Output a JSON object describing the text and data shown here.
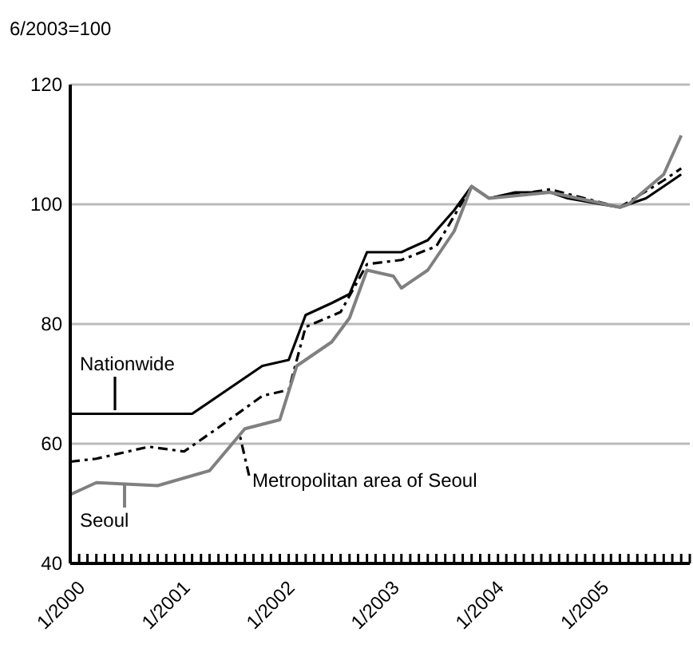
{
  "chart_data": {
    "type": "line",
    "title": "6/2003=100",
    "ylim": [
      40,
      120
    ],
    "yticks": [
      40,
      60,
      80,
      100,
      120
    ],
    "grid": "y",
    "legend": "bottom left",
    "xlim": [
      "2000-01",
      "2005-12"
    ],
    "xticks": [
      {
        "value": "2000-01",
        "label": "1/2000"
      },
      {
        "value": "2000-02",
        "label": null
      },
      {
        "value": "2000-03",
        "label": null
      },
      {
        "value": "2000-04",
        "label": null
      },
      {
        "value": "2000-05",
        "label": null
      },
      {
        "value": "2000-06",
        "label": null
      },
      {
        "value": "2000-07",
        "label": null
      },
      {
        "value": "2000-08",
        "label": null
      },
      {
        "value": "2000-09",
        "label": null
      },
      {
        "value": "2000-10",
        "label": null
      },
      {
        "value": "2000-11",
        "label": null
      },
      {
        "value": "2000-12",
        "label": null
      },
      {
        "value": "2001-01",
        "label": "1/2001"
      },
      {
        "value": "2001-02",
        "label": null
      },
      {
        "value": "2001-03",
        "label": null
      },
      {
        "value": "2001-04",
        "label": null
      },
      {
        "value": "2001-05",
        "label": null
      },
      {
        "value": "2001-06",
        "label": null
      },
      {
        "value": "2001-07",
        "label": null
      },
      {
        "value": "2001-08",
        "label": null
      },
      {
        "value": "2001-09",
        "label": null
      },
      {
        "value": "2001-10",
        "label": null
      },
      {
        "value": "2001-11",
        "label": null
      },
      {
        "value": "2001-12",
        "label": null
      },
      {
        "value": "2002-01",
        "label": "1/2002"
      },
      {
        "value": "2002-02",
        "label": null
      },
      {
        "value": "2002-03",
        "label": null
      },
      {
        "value": "2002-04",
        "label": null
      },
      {
        "value": "2002-05",
        "label": null
      },
      {
        "value": "2002-06",
        "label": null
      },
      {
        "value": "2002-07",
        "label": null
      },
      {
        "value": "2002-08",
        "label": null
      },
      {
        "value": "2002-09",
        "label": null
      },
      {
        "value": "2002-10",
        "label": null
      },
      {
        "value": "2002-11",
        "label": null
      },
      {
        "value": "2002-12",
        "label": null
      },
      {
        "value": "2003-01",
        "label": "1/2003"
      },
      {
        "value": "2003-02",
        "label": null
      },
      {
        "value": "2003-03",
        "label": null
      },
      {
        "value": "2003-04",
        "label": null
      },
      {
        "value": "2003-05",
        "label": null
      },
      {
        "value": "2003-06",
        "label": null
      },
      {
        "value": "2003-07",
        "label": null
      },
      {
        "value": "2003-08",
        "label": null
      },
      {
        "value": "2003-09",
        "label": null
      },
      {
        "value": "2003-10",
        "label": null
      },
      {
        "value": "2003-11",
        "label": null
      },
      {
        "value": "2003-12",
        "label": null
      },
      {
        "value": "2004-01",
        "label": "1/2004"
      },
      {
        "value": "2004-02",
        "label": null
      },
      {
        "value": "2004-03",
        "label": null
      },
      {
        "value": "2004-04",
        "label": null
      },
      {
        "value": "2004-05",
        "label": null
      },
      {
        "value": "2004-06",
        "label": null
      },
      {
        "value": "2004-07",
        "label": null
      },
      {
        "value": "2004-08",
        "label": null
      },
      {
        "value": "2004-09",
        "label": null
      },
      {
        "value": "2004-10",
        "label": null
      },
      {
        "value": "2004-11",
        "label": null
      },
      {
        "value": "2004-12",
        "label": null
      },
      {
        "value": "2005-01",
        "label": "1/2005"
      },
      {
        "value": "2005-02",
        "label": null
      },
      {
        "value": "2005-03",
        "label": null
      },
      {
        "value": "2005-04",
        "label": null
      },
      {
        "value": "2005-05",
        "label": null
      },
      {
        "value": "2005-06",
        "label": null
      },
      {
        "value": "2005-07",
        "label": null
      },
      {
        "value": "2005-08",
        "label": null
      },
      {
        "value": "2005-09",
        "label": null
      },
      {
        "value": "2005-10",
        "label": null
      },
      {
        "value": "2005-11",
        "label": null
      },
      {
        "value": "2005-12",
        "label": null
      }
    ],
    "series": [
      {
        "name": "Nationwide",
        "color": "#000000",
        "line_style": "solid",
        "x": [
          "2000-01",
          "2001-03",
          "2001-11",
          "2002-02",
          "2002-04",
          "2002-07",
          "2002-09",
          "2002-11",
          "2003-03",
          "2003-06",
          "2003-09",
          "2003-11",
          "2004-01",
          "2004-04",
          "2004-08",
          "2004-10",
          "2005-04",
          "2005-07",
          "2005-09",
          "2005-11"
        ],
        "values": [
          65,
          65,
          73,
          74,
          81.5,
          83.5,
          85,
          92,
          92,
          94,
          99,
          103,
          101,
          102,
          102,
          101,
          99.5,
          101,
          103,
          105
        ]
      },
      {
        "name": "Metropolitan area of Seoul",
        "color": "#000000",
        "line_style": "dashed",
        "x": [
          "2000-01",
          "2000-04",
          "2000-10",
          "2001-02",
          "2001-06",
          "2001-11",
          "2002-02",
          "2002-04",
          "2002-08",
          "2002-11",
          "2003-03",
          "2003-07",
          "2003-11",
          "2004-01",
          "2004-08",
          "2005-04",
          "2005-09",
          "2005-11"
        ],
        "values": [
          57,
          57.5,
          59.5,
          58.7,
          62.7,
          68,
          69,
          79.5,
          82,
          90,
          90.7,
          93,
          103,
          101,
          102.5,
          99.5,
          104,
          106
        ]
      },
      {
        "name": "Seoul",
        "color": "#808080",
        "line_style": "solid",
        "x": [
          "2000-01",
          "2000-04",
          "2000-11",
          "2001-05",
          "2001-09",
          "2002-01",
          "2002-03",
          "2002-07",
          "2002-09",
          "2002-11",
          "2003-02",
          "2003-03",
          "2003-06",
          "2003-09",
          "2003-11",
          "2004-01",
          "2004-08",
          "2005-04",
          "2005-05",
          "2005-09",
          "2005-11"
        ],
        "values": [
          51.5,
          53.5,
          53,
          55.5,
          62.5,
          64,
          73,
          77,
          81,
          89,
          88,
          86,
          89,
          95.5,
          103,
          101,
          102,
          99.5,
          100,
          105,
          111.5
        ]
      }
    ]
  }
}
